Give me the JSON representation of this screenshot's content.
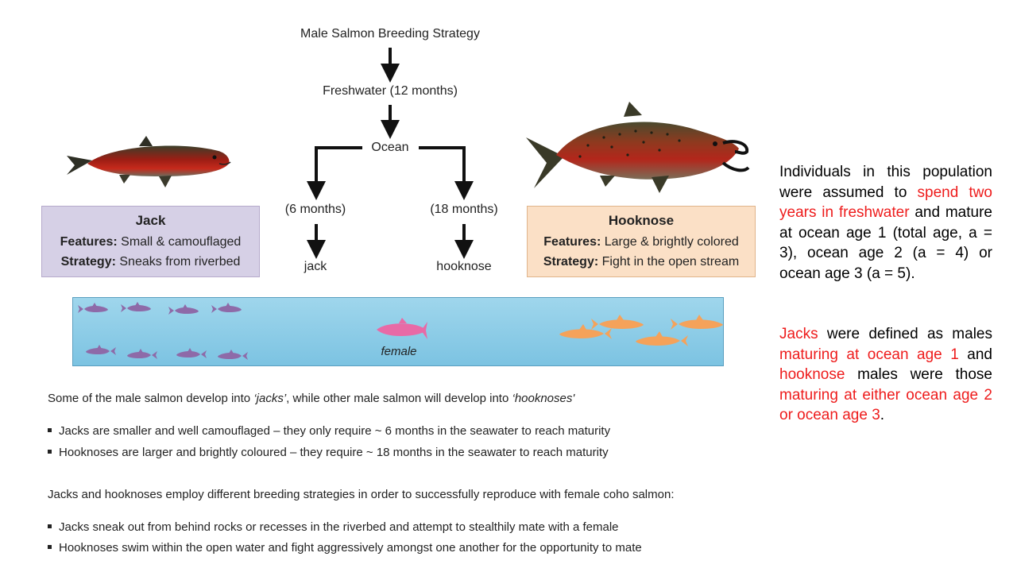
{
  "flowchart": {
    "title": "Male Salmon Breeding Strategy",
    "freshwater": "Freshwater (12 months)",
    "ocean": "Ocean",
    "left_branch": "(6 months)",
    "right_branch": "(18 months)",
    "left_result": "jack",
    "right_result": "hooknose"
  },
  "jack_card": {
    "title": "Jack",
    "features_label": "Features:",
    "features_value": "Small & camouflaged",
    "strategy_label": "Strategy:",
    "strategy_value": "Sneaks from riverbed"
  },
  "hooknose_card": {
    "title": "Hooknose",
    "features_label": "Features:",
    "features_value": "Large & brightly colored",
    "strategy_label": "Strategy:",
    "strategy_value": "Fight in the open stream"
  },
  "stream": {
    "female_label": "female"
  },
  "text": {
    "intro_a": "Some of the male salmon develop into ",
    "intro_jacks": "‘jacks’",
    "intro_b": ", while other male salmon will develop into ",
    "intro_hook": "‘hooknoses'",
    "bullet1": "Jacks are smaller and well camouflaged – they only require ~ 6 months in the seawater to reach maturity",
    "bullet2": "Hooknoses are larger and brightly coloured – they require ~ 18 months in the seawater to reach maturity",
    "para2": "Jacks and hooknoses employ different breeding strategies in order to successfully reproduce with female coho salmon:",
    "bullet3": "Jacks sneak out from behind rocks or recesses in the riverbed and attempt to stealthily mate with a female",
    "bullet4": "Hooknoses swim within the open water and fight aggressively amongst one another for the opportunity to mate"
  },
  "side_note": {
    "p1_a": "Individuals in this population were assumed to ",
    "p1_red": "spend two years in freshwater",
    "p1_b": " and mature at ocean age 1 (total age, a = 3), ocean age 2 (a = 4) or ocean age 3 (a = 5).",
    "p2_jacks": "Jacks",
    "p2_a": " were defined as males ",
    "p2_red1": "maturing at ocean age 1",
    "p2_b": " and ",
    "p2_hook": "hooknose",
    "p2_c": " males were those ",
    "p2_red2": "maturing at either ocean age 2 or ocean age 3",
    "p2_d": "."
  },
  "colors": {
    "highlight": "#ee1c1c",
    "jack_fish": "#8e6aa8",
    "hooknose_fish": "#f5a25a",
    "female_fish": "#e86aa6"
  }
}
